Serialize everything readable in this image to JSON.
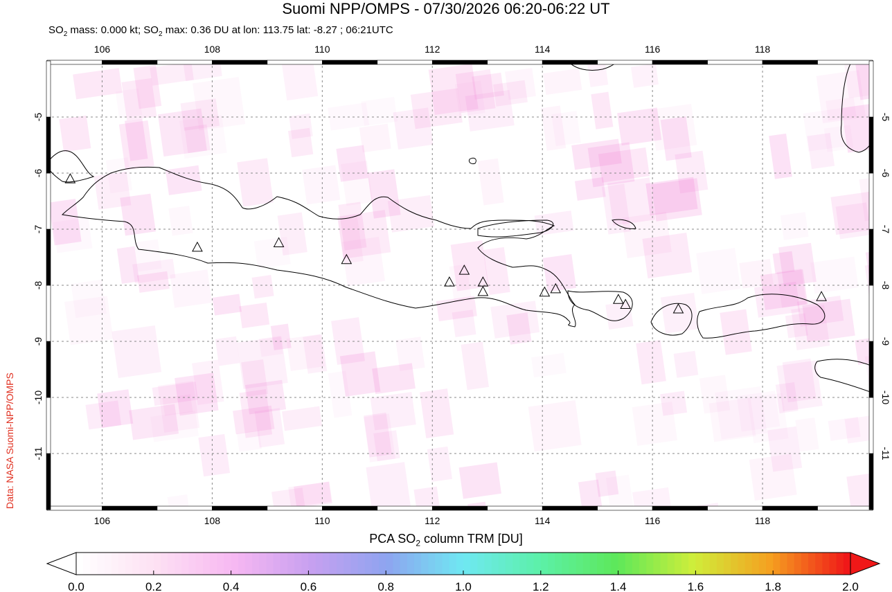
{
  "title": "Suomi NPP/OMPS - 07/30/2026 06:20-06:22 UT",
  "subtitle": {
    "prefix": "SO",
    "sub1": "2",
    "mid": " mass: 0.000 kt; SO",
    "sub2": "2",
    "rest": " max: 0.36 DU at lon: 113.75 lat: -8.27 ; 06:21UTC"
  },
  "credit": "Data: NASA Suomi-NPP/OMPS",
  "map": {
    "lon_range": [
      105.0,
      120.0
    ],
    "lat_range": [
      -12.0,
      -4.0
    ],
    "lon_ticks": [
      "106",
      "108",
      "110",
      "112",
      "114",
      "116",
      "118"
    ],
    "lat_ticks": [
      "-5",
      "-6",
      "-7",
      "-8",
      "-9",
      "-10",
      "-11"
    ],
    "grid": "dashed gray",
    "volcano_icon": "triangle-icon",
    "volcanoes": [
      {
        "lon": 105.42,
        "lat": -6.1
      },
      {
        "lon": 107.73,
        "lat": -7.32
      },
      {
        "lon": 109.21,
        "lat": -7.24
      },
      {
        "lon": 110.44,
        "lat": -7.54
      },
      {
        "lon": 112.31,
        "lat": -7.94
      },
      {
        "lon": 112.58,
        "lat": -7.73
      },
      {
        "lon": 112.92,
        "lat": -7.94
      },
      {
        "lon": 112.92,
        "lat": -8.11
      },
      {
        "lon": 114.04,
        "lat": -8.12
      },
      {
        "lon": 114.24,
        "lat": -8.06
      },
      {
        "lon": 115.38,
        "lat": -8.25
      },
      {
        "lon": 115.51,
        "lat": -8.34
      },
      {
        "lon": 116.47,
        "lat": -8.42
      },
      {
        "lon": 119.07,
        "lat": -8.2
      }
    ]
  },
  "colorbar": {
    "label_prefix": "PCA SO",
    "label_sub": "2",
    "label_rest": " column TRM [DU]",
    "ticks": [
      "0.0",
      "0.2",
      "0.4",
      "0.6",
      "0.8",
      "1.0",
      "1.2",
      "1.4",
      "1.6",
      "1.8",
      "2.0"
    ],
    "colors": [
      "#ffffff",
      "#fde0f3",
      "#f7b8f2",
      "#c8a0f0",
      "#8ea4f0",
      "#6fe8f2",
      "#5cf0a8",
      "#5de85a",
      "#cfee3a",
      "#f5a020",
      "#f01818"
    ]
  }
}
